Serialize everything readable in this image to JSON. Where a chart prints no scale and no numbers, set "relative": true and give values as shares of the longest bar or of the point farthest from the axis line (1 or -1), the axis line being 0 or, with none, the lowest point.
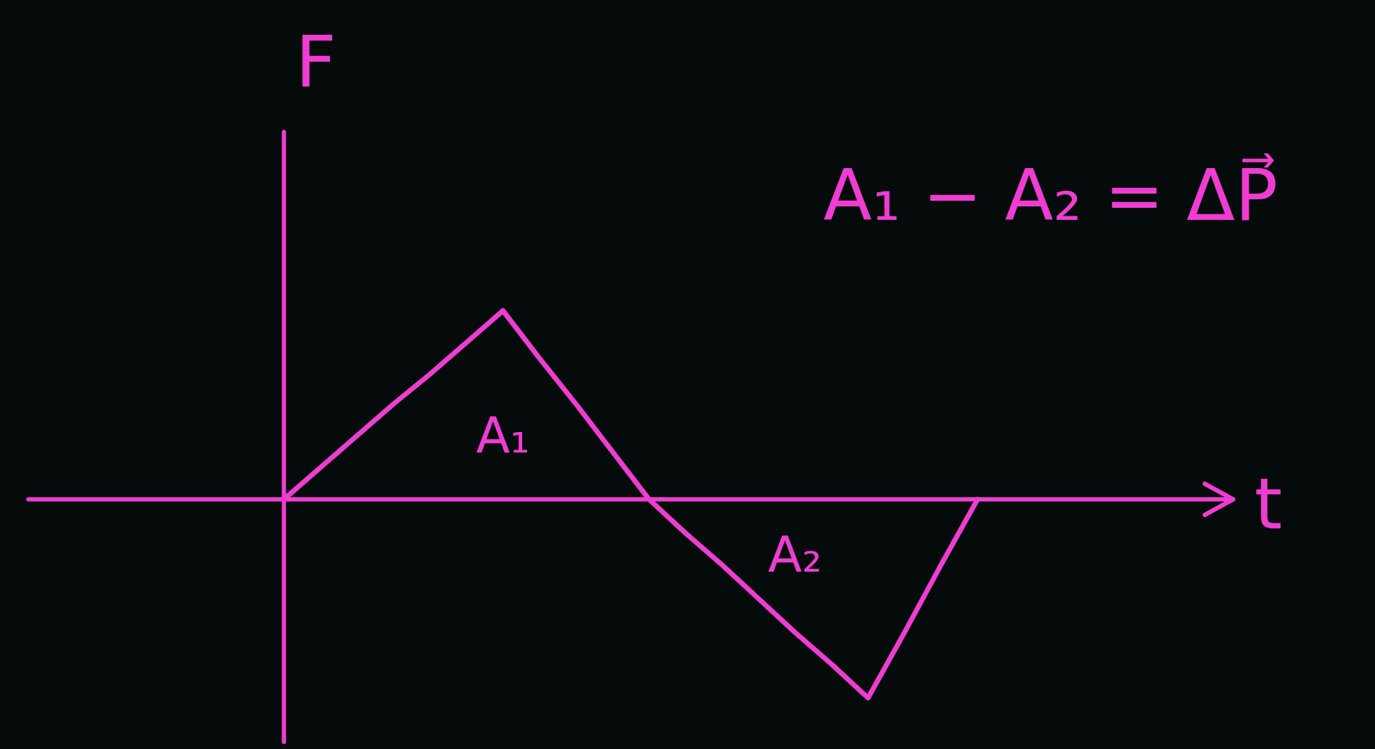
{
  "chart_data": {
    "type": "line",
    "relative": true,
    "xlabel": "t",
    "ylabel": "F",
    "categories": [
      null,
      null,
      null,
      null,
      null,
      null,
      null,
      null,
      null,
      null,
      null,
      null,
      null,
      null,
      null,
      null,
      null,
      null,
      null,
      null,
      null,
      null,
      null,
      null,
      null,
      null,
      null,
      null,
      null,
      null,
      null,
      null,
      null,
      null
    ],
    "series": [
      {
        "color": "#f03cd2",
        "values": [
          null,
          null,
          null,
          null,
          null,
          null,
          null,
          0,
          0.16,
          0.32,
          0.48,
          0.63,
          0.79,
          0.95,
          0.71,
          0.48,
          0.24,
          0,
          -0.17,
          -0.33,
          -0.5,
          -0.67,
          -0.83,
          -1,
          -0.67,
          -0.33,
          0,
          null,
          null,
          null,
          null,
          null,
          null,
          null
        ]
      }
    ],
    "annotations": [
      "A₁ − A₂ = ΔP⃗",
      "A₁",
      "A₂"
    ],
    "ref_lines": [
      {
        "axis": "y",
        "value": 0,
        "color": "#f03cd2"
      }
    ],
    "legend": false,
    "marker": "none",
    "line_style": "solid"
  }
}
